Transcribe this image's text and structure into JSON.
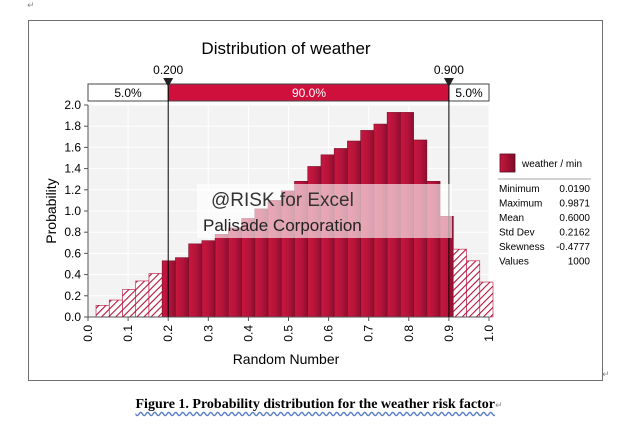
{
  "document": {
    "caption": "Figure 1. Probability distribution for the weather risk factor",
    "paragraph_mark": "↵"
  },
  "chart_data": {
    "type": "bar",
    "title": "Distribution of weather",
    "xlabel": "Random Number",
    "ylabel": "Probability",
    "xlim": [
      0.0,
      1.0
    ],
    "ylim": [
      0.0,
      2.0
    ],
    "x_ticks": [
      "0.0",
      "0.1",
      "0.2",
      "0.3",
      "0.4",
      "0.5",
      "0.6",
      "0.7",
      "0.8",
      "0.9",
      "1.0"
    ],
    "y_ticks": [
      "0.0",
      "0.2",
      "0.4",
      "0.6",
      "0.8",
      "1.0",
      "1.2",
      "1.4",
      "1.6",
      "1.8",
      "2.0"
    ],
    "bin_width": 0.033,
    "bins": [
      {
        "x0": 0.02,
        "value": 0.11
      },
      {
        "x0": 0.053,
        "value": 0.16
      },
      {
        "x0": 0.086,
        "value": 0.26
      },
      {
        "x0": 0.119,
        "value": 0.34
      },
      {
        "x0": 0.152,
        "value": 0.41
      },
      {
        "x0": 0.185,
        "value": 0.53
      },
      {
        "x0": 0.218,
        "value": 0.56
      },
      {
        "x0": 0.251,
        "value": 0.69
      },
      {
        "x0": 0.284,
        "value": 0.72
      },
      {
        "x0": 0.317,
        "value": 0.78
      },
      {
        "x0": 0.35,
        "value": 0.84
      },
      {
        "x0": 0.383,
        "value": 0.93
      },
      {
        "x0": 0.416,
        "value": 1.02
      },
      {
        "x0": 0.449,
        "value": 1.1
      },
      {
        "x0": 0.482,
        "value": 1.19
      },
      {
        "x0": 0.515,
        "value": 1.28
      },
      {
        "x0": 0.548,
        "value": 1.42
      },
      {
        "x0": 0.581,
        "value": 1.53
      },
      {
        "x0": 0.614,
        "value": 1.59
      },
      {
        "x0": 0.647,
        "value": 1.66
      },
      {
        "x0": 0.68,
        "value": 1.76
      },
      {
        "x0": 0.713,
        "value": 1.82
      },
      {
        "x0": 0.746,
        "value": 1.93
      },
      {
        "x0": 0.779,
        "value": 1.93
      },
      {
        "x0": 0.812,
        "value": 1.67
      },
      {
        "x0": 0.845,
        "value": 1.28
      },
      {
        "x0": 0.878,
        "value": 0.95
      },
      {
        "x0": 0.911,
        "value": 0.64
      },
      {
        "x0": 0.944,
        "value": 0.53
      },
      {
        "x0": 0.977,
        "value": 0.33
      }
    ],
    "delimiters": {
      "left": {
        "value": 0.2,
        "label": "0.200"
      },
      "right": {
        "value": 0.9,
        "label": "0.900"
      }
    },
    "percent_band": {
      "left": "5.0%",
      "middle": "90.0%",
      "right": "5.0%"
    },
    "watermark": {
      "line1": "@RISK for Excel",
      "line2": "Palisade Corporation"
    },
    "legend": {
      "series": "weather / min",
      "color": "#b5133b"
    },
    "stats": [
      {
        "label": "Minimum",
        "value": "0.0190"
      },
      {
        "label": "Maximum",
        "value": "0.9871"
      },
      {
        "label": "Mean",
        "value": "0.6000"
      },
      {
        "label": "Std Dev",
        "value": "0.2162"
      },
      {
        "label": "Skewness",
        "value": "-0.4777"
      },
      {
        "label": "Values",
        "value": "1000"
      }
    ],
    "colors": {
      "bar": "#b5133b",
      "bar_dark": "#8c0f2e",
      "band_middle": "#d0103c",
      "plot_bg": "#f3f3f3",
      "grid": "#ffffff"
    }
  }
}
